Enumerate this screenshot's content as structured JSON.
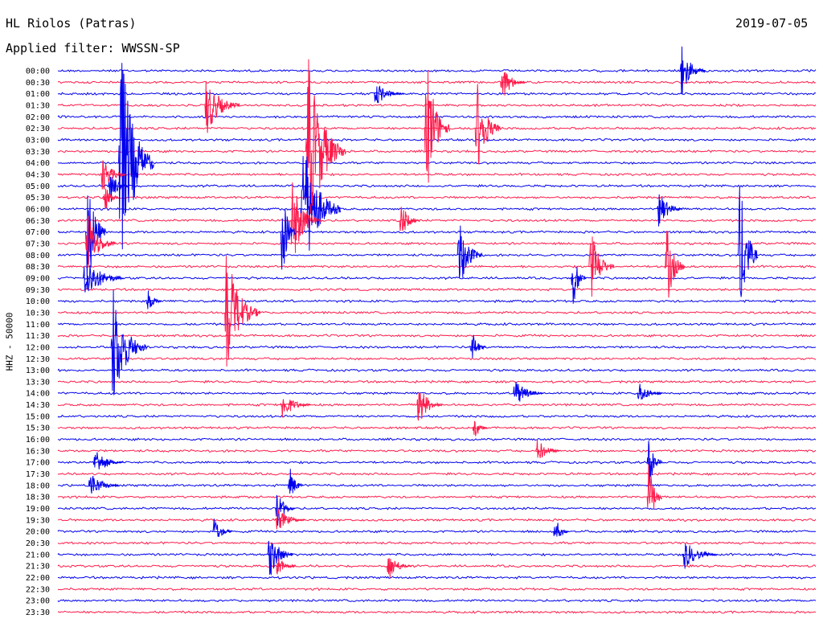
{
  "header": {
    "station": "HL Riolos (Patras)",
    "filter_line": "Applied filter: WWSSN-SP",
    "date": "2019-07-05"
  },
  "colors": {
    "blue": "#0000ee",
    "red": "#ff1a4a",
    "background": "#ffffff",
    "text": "#000000"
  },
  "chart_data": {
    "type": "line",
    "title": "HL Riolos (Patras)",
    "subtitle": "Applied filter: WWSSN-SP",
    "date": "2019-07-05",
    "ylabel": "HHZ - 50000",
    "xlabel": "",
    "minutes_per_row": 30,
    "series_colors": [
      "blue",
      "red"
    ],
    "tick_labels": [
      "00:00",
      "00:30",
      "01:00",
      "01:30",
      "02:00",
      "02:30",
      "03:00",
      "03:30",
      "04:00",
      "04:30",
      "05:00",
      "05:30",
      "06:00",
      "06:30",
      "07:00",
      "07:30",
      "08:00",
      "08:30",
      "09:00",
      "09:30",
      "10:00",
      "10:30",
      "11:00",
      "11:30",
      "12:00",
      "12:30",
      "13:00",
      "13:30",
      "14:00",
      "14:30",
      "15:00",
      "15:30",
      "16:00",
      "16:30",
      "17:00",
      "17:30",
      "18:00",
      "18:30",
      "19:00",
      "19:30",
      "20:00",
      "20:30",
      "21:00",
      "21:30",
      "22:00",
      "22:30",
      "23:00",
      "23:30"
    ],
    "events": [
      {
        "row": 0,
        "minute": 24.6,
        "amplitude": 2.0,
        "duration": 1.0
      },
      {
        "row": 1,
        "minute": 17.5,
        "amplitude": 1.5,
        "duration": 1.0
      },
      {
        "row": 2,
        "minute": 12.5,
        "amplitude": 1.0,
        "duration": 1.2
      },
      {
        "row": 3,
        "minute": 5.8,
        "amplitude": 2.4,
        "duration": 1.4
      },
      {
        "row": 5,
        "minute": 14.5,
        "amplitude": 6.0,
        "duration": 1.0
      },
      {
        "row": 5,
        "minute": 16.5,
        "amplitude": 4.0,
        "duration": 1.0
      },
      {
        "row": 7,
        "minute": 9.8,
        "amplitude": 8.0,
        "duration": 1.6
      },
      {
        "row": 8,
        "minute": 2.4,
        "amplitude": 10.0,
        "duration": 1.4
      },
      {
        "row": 9,
        "minute": 1.7,
        "amplitude": 1.5,
        "duration": 1.0
      },
      {
        "row": 10,
        "minute": 2.0,
        "amplitude": 1.5,
        "duration": 0.8
      },
      {
        "row": 11,
        "minute": 1.8,
        "amplitude": 1.2,
        "duration": 0.6
      },
      {
        "row": 12,
        "minute": 9.6,
        "amplitude": 6.0,
        "duration": 1.6
      },
      {
        "row": 12,
        "minute": 23.7,
        "amplitude": 1.5,
        "duration": 1.0
      },
      {
        "row": 13,
        "minute": 9.2,
        "amplitude": 3.5,
        "duration": 1.2
      },
      {
        "row": 13,
        "minute": 13.5,
        "amplitude": 1.5,
        "duration": 0.8
      },
      {
        "row": 14,
        "minute": 1.1,
        "amplitude": 5.0,
        "duration": 0.8
      },
      {
        "row": 14,
        "minute": 8.8,
        "amplitude": 4.0,
        "duration": 0.6
      },
      {
        "row": 15,
        "minute": 1.1,
        "amplitude": 2.5,
        "duration": 1.2
      },
      {
        "row": 16,
        "minute": 15.8,
        "amplitude": 3.0,
        "duration": 1.0
      },
      {
        "row": 16,
        "minute": 26.9,
        "amplitude": 6.0,
        "duration": 0.8
      },
      {
        "row": 17,
        "minute": 21.0,
        "amplitude": 3.0,
        "duration": 1.0
      },
      {
        "row": 17,
        "minute": 24.0,
        "amplitude": 3.5,
        "duration": 0.8
      },
      {
        "row": 18,
        "minute": 1.0,
        "amplitude": 2.0,
        "duration": 1.6
      },
      {
        "row": 18,
        "minute": 20.3,
        "amplitude": 2.5,
        "duration": 0.6
      },
      {
        "row": 20,
        "minute": 3.5,
        "amplitude": 1.0,
        "duration": 0.6
      },
      {
        "row": 21,
        "minute": 6.6,
        "amplitude": 5.0,
        "duration": 1.4
      },
      {
        "row": 24,
        "minute": 2.1,
        "amplitude": 5.0,
        "duration": 1.4
      },
      {
        "row": 24,
        "minute": 16.3,
        "amplitude": 1.5,
        "duration": 0.6
      },
      {
        "row": 28,
        "minute": 18.0,
        "amplitude": 1.2,
        "duration": 1.2
      },
      {
        "row": 28,
        "minute": 22.9,
        "amplitude": 1.0,
        "duration": 1.0
      },
      {
        "row": 29,
        "minute": 8.8,
        "amplitude": 1.2,
        "duration": 1.2
      },
      {
        "row": 29,
        "minute": 14.2,
        "amplitude": 1.8,
        "duration": 1.0
      },
      {
        "row": 31,
        "minute": 16.4,
        "amplitude": 1.0,
        "duration": 0.6
      },
      {
        "row": 33,
        "minute": 18.9,
        "amplitude": 1.0,
        "duration": 1.0
      },
      {
        "row": 34,
        "minute": 1.4,
        "amplitude": 1.2,
        "duration": 1.2
      },
      {
        "row": 34,
        "minute": 23.3,
        "amplitude": 2.0,
        "duration": 0.6
      },
      {
        "row": 36,
        "minute": 1.2,
        "amplitude": 1.2,
        "duration": 1.2
      },
      {
        "row": 36,
        "minute": 9.1,
        "amplitude": 1.5,
        "duration": 0.6
      },
      {
        "row": 37,
        "minute": 23.3,
        "amplitude": 3.0,
        "duration": 0.6
      },
      {
        "row": 38,
        "minute": 8.6,
        "amplitude": 1.5,
        "duration": 0.8
      },
      {
        "row": 39,
        "minute": 8.6,
        "amplitude": 1.0,
        "duration": 1.2
      },
      {
        "row": 40,
        "minute": 6.1,
        "amplitude": 1.2,
        "duration": 0.8
      },
      {
        "row": 40,
        "minute": 19.6,
        "amplitude": 1.2,
        "duration": 0.6
      },
      {
        "row": 42,
        "minute": 8.3,
        "amplitude": 2.0,
        "duration": 1.0
      },
      {
        "row": 42,
        "minute": 24.7,
        "amplitude": 1.2,
        "duration": 1.4
      },
      {
        "row": 43,
        "minute": 8.6,
        "amplitude": 1.0,
        "duration": 0.8
      },
      {
        "row": 43,
        "minute": 13.0,
        "amplitude": 1.2,
        "duration": 1.0
      }
    ]
  }
}
